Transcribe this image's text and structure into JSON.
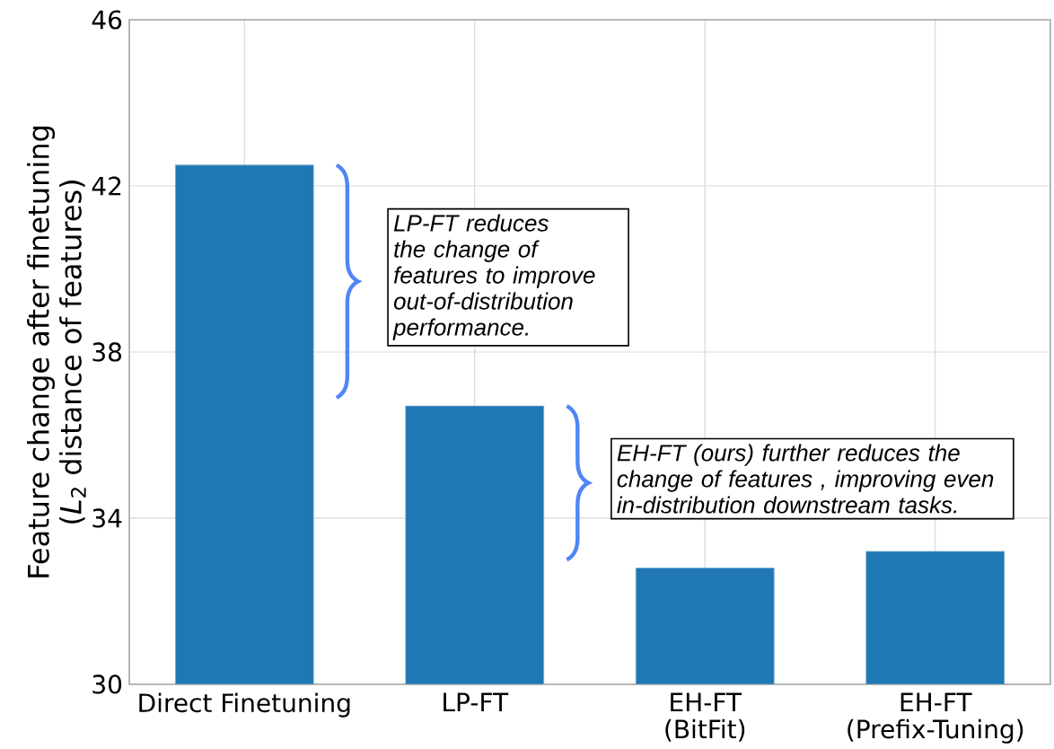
{
  "chart_data": {
    "type": "bar",
    "ylabel": "Feature change after finetuning\n(*L*$_{2}$ distance of features)",
    "categories": [
      "Direct Finetuning",
      "LP-FT",
      "EH-FT\n(BitFit)",
      "EH-FT\n(Prefix-Tuning)"
    ],
    "values": [
      42.5,
      36.7,
      32.8,
      33.2
    ],
    "color": "#1f77b4",
    "ylim": [
      30,
      46
    ],
    "yticks": [
      30,
      34,
      38,
      42,
      46
    ],
    "grid": true,
    "annotations": [
      "LP-FT reduces the change of features to improve out-of-distribution performance.",
      "EH-FT (ours) further reduces the change of features , improving even in-distribution downstream tasks."
    ]
  }
}
